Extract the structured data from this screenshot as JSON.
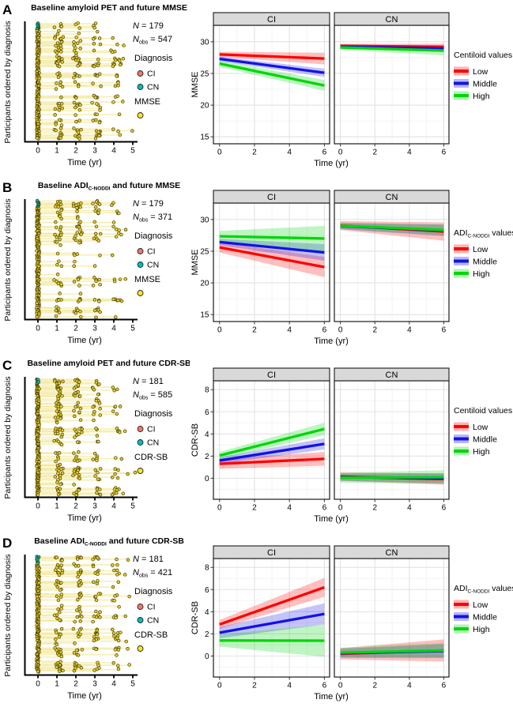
{
  "colors": {
    "low": "#FF0000",
    "middle": "#1212E8",
    "high": "#00D60A",
    "ci": "#F8766D",
    "cn": "#00BFC4",
    "outcome": "#FCE51E",
    "sp_line": "#EFE07A",
    "sp_dot": "#E6CF26",
    "sp_stroke": "#473C06",
    "strip_fill": "#D9D9D9",
    "panel_border": "#1A1A1A",
    "grid_major": "#E2E2E2",
    "grid_minor": "#F0F0F0",
    "tick_text": "#262626"
  },
  "chart_data": {
    "panels": [
      {
        "letter": "A",
        "title": [
          {
            "t": "Baseline amyloid PET and future MMSE"
          }
        ],
        "left": {
          "type": "spaghetti",
          "ylabel": "Participants ordered by diagnosis",
          "xlabel": "Time (yr)",
          "xticks": [
            0,
            1,
            2,
            3,
            4,
            5
          ],
          "n": "179",
          "nobs": "547",
          "legend_diagnosis_title": "Diagnosis",
          "legend_diagnosis": [
            {
              "label": "CI",
              "color_key": "ci"
            },
            {
              "label": "CN",
              "color_key": "cn"
            }
          ],
          "legend_outcome_title": "MMSE",
          "sim": {
            "seed": 11,
            "rows": 92,
            "followup_prob": 0.78,
            "time_max": 5.2
          }
        },
        "right": {
          "type": "line",
          "facets": [
            "CI",
            "CN"
          ],
          "ylabel": "MMSE",
          "xlabel": "Time (yr)",
          "x": [
            0,
            6
          ],
          "xticks": [
            0,
            2,
            4,
            6
          ],
          "xminor": [
            1,
            3,
            5
          ],
          "xlim": [
            -0.35,
            6.3
          ],
          "yticks": [
            15,
            20,
            25,
            30
          ],
          "yminor": [
            17.5,
            22.5,
            27.5,
            32.5
          ],
          "ylim": [
            13.9,
            32.6
          ],
          "legend_title": [
            {
              "t": "Centiloid values"
            }
          ],
          "legend_items": [
            {
              "label": "Low",
              "color_key": "low"
            },
            {
              "label": "Middle",
              "color_key": "middle"
            },
            {
              "label": "High",
              "color_key": "high"
            }
          ],
          "series": [
            {
              "facet": "CI",
              "name": "Low",
              "color_key": "low",
              "y": [
                28.0,
                27.35
              ],
              "band": [
                0.42,
                0.92
              ]
            },
            {
              "facet": "CI",
              "name": "Middle",
              "color_key": "middle",
              "y": [
                27.3,
                25.1
              ],
              "band": [
                0.35,
                0.65
              ]
            },
            {
              "facet": "CI",
              "name": "High",
              "color_key": "high",
              "y": [
                26.55,
                23.1
              ],
              "band": [
                0.5,
                0.85
              ]
            },
            {
              "facet": "CN",
              "name": "Low",
              "color_key": "low",
              "y": [
                29.35,
                29.2
              ],
              "band": [
                0.32,
                0.5
              ]
            },
            {
              "facet": "CN",
              "name": "Middle",
              "color_key": "middle",
              "y": [
                29.2,
                28.95
              ],
              "band": [
                0.28,
                0.45
              ]
            },
            {
              "facet": "CN",
              "name": "High",
              "color_key": "high",
              "y": [
                29.1,
                28.6
              ],
              "band": [
                0.35,
                0.75
              ]
            }
          ]
        }
      },
      {
        "letter": "B",
        "title": [
          {
            "t": "Baseline ADI"
          },
          {
            "s": "C-NODDI"
          },
          {
            "t": " and future MMSE"
          }
        ],
        "left": {
          "type": "spaghetti",
          "ylabel": "Participants ordered by diagnosis",
          "xlabel": "Time (yr)",
          "xticks": [
            0,
            1,
            2,
            3,
            4,
            5
          ],
          "n": "179",
          "nobs": "371",
          "legend_diagnosis_title": "Diagnosis",
          "legend_diagnosis": [
            {
              "label": "CI",
              "color_key": "ci"
            },
            {
              "label": "CN",
              "color_key": "cn"
            }
          ],
          "legend_outcome_title": "MMSE",
          "sim": {
            "seed": 23,
            "rows": 92,
            "followup_prob": 0.62,
            "time_max": 4.6
          }
        },
        "right": {
          "type": "line",
          "facets": [
            "CI",
            "CN"
          ],
          "ylabel": "MMSE",
          "xlabel": "Time (yr)",
          "x": [
            0,
            6
          ],
          "xticks": [
            0,
            2,
            4,
            6
          ],
          "xminor": [
            1,
            3,
            5
          ],
          "xlim": [
            -0.35,
            6.3
          ],
          "yticks": [
            15,
            20,
            25,
            30
          ],
          "yminor": [
            17.5,
            22.5,
            27.5,
            32.5
          ],
          "ylim": [
            13.9,
            32.6
          ],
          "legend_title": [
            {
              "t": "ADI"
            },
            {
              "s": "C-NODDI"
            },
            {
              "t": " values"
            }
          ],
          "legend_items": [
            {
              "label": "Low",
              "color_key": "low"
            },
            {
              "label": "Middle",
              "color_key": "middle"
            },
            {
              "label": "High",
              "color_key": "high"
            }
          ],
          "series": [
            {
              "facet": "CI",
              "name": "Low",
              "color_key": "low",
              "y": [
                25.6,
                22.5
              ],
              "band": [
                0.8,
                1.6
              ]
            },
            {
              "facet": "CI",
              "name": "Middle",
              "color_key": "middle",
              "y": [
                26.45,
                24.8
              ],
              "band": [
                0.5,
                1.3
              ]
            },
            {
              "facet": "CI",
              "name": "High",
              "color_key": "high",
              "y": [
                27.35,
                27.0
              ],
              "band": [
                0.85,
                2.0
              ]
            },
            {
              "facet": "CN",
              "name": "Low",
              "color_key": "low",
              "y": [
                29.05,
                28.1
              ],
              "band": [
                0.7,
                1.45
              ]
            },
            {
              "facet": "CN",
              "name": "Middle",
              "color_key": "middle",
              "y": [
                28.95,
                28.3
              ],
              "band": [
                0.5,
                0.9
              ]
            },
            {
              "facet": "CN",
              "name": "High",
              "color_key": "high",
              "y": [
                29.0,
                28.35
              ],
              "band": [
                0.5,
                0.85
              ]
            }
          ]
        }
      },
      {
        "letter": "C",
        "title": [
          {
            "t": "Baseline amyloid PET and future CDR-SB"
          }
        ],
        "left": {
          "type": "spaghetti",
          "ylabel": "Participants ordered by diagnosis",
          "xlabel": "Time (yr)",
          "xticks": [
            0,
            1,
            2,
            3,
            4,
            5
          ],
          "n": "181",
          "nobs": "585",
          "legend_diagnosis_title": "Diagnosis",
          "legend_diagnosis": [
            {
              "label": "CI",
              "color_key": "ci"
            },
            {
              "label": "CN",
              "color_key": "cn"
            }
          ],
          "legend_outcome_title": "CDR-SB",
          "sim": {
            "seed": 5,
            "rows": 92,
            "followup_prob": 0.8,
            "time_max": 5.2
          }
        },
        "right": {
          "type": "line",
          "facets": [
            "CI",
            "CN"
          ],
          "ylabel": "CDR-SB",
          "xlabel": "Time (yr)",
          "x": [
            0,
            6
          ],
          "xticks": [
            0,
            2,
            4,
            6
          ],
          "xminor": [
            1,
            3,
            5
          ],
          "xlim": [
            -0.35,
            6.3
          ],
          "yticks": [
            0,
            2,
            4,
            6,
            8
          ],
          "yminor": [
            -1,
            1,
            3,
            5,
            7
          ],
          "ylim": [
            -1.9,
            8.8
          ],
          "legend_title": [
            {
              "t": "Centiloid values"
            }
          ],
          "legend_items": [
            {
              "label": "Low",
              "color_key": "low"
            },
            {
              "label": "Middle",
              "color_key": "middle"
            },
            {
              "label": "High",
              "color_key": "high"
            }
          ],
          "series": [
            {
              "facet": "CI",
              "name": "Low",
              "color_key": "low",
              "y": [
                1.3,
                1.75
              ],
              "band": [
                0.45,
                0.62
              ]
            },
            {
              "facet": "CI",
              "name": "Middle",
              "color_key": "middle",
              "y": [
                1.6,
                3.1
              ],
              "band": [
                0.3,
                0.5
              ]
            },
            {
              "facet": "CI",
              "name": "High",
              "color_key": "high",
              "y": [
                2.05,
                4.45
              ],
              "band": [
                0.33,
                0.55
              ]
            },
            {
              "facet": "CN",
              "name": "Low",
              "color_key": "low",
              "y": [
                0.15,
                -0.08
              ],
              "band": [
                0.38,
                0.5
              ]
            },
            {
              "facet": "CN",
              "name": "Middle",
              "color_key": "middle",
              "y": [
                0.1,
                0.0
              ],
              "band": [
                0.33,
                0.45
              ]
            },
            {
              "facet": "CN",
              "name": "High",
              "color_key": "high",
              "y": [
                0.05,
                0.1
              ],
              "band": [
                0.45,
                0.62
              ]
            }
          ]
        }
      },
      {
        "letter": "D",
        "title": [
          {
            "t": "Baseline ADI"
          },
          {
            "s": "C-NODDI"
          },
          {
            "t": " and future CDR-SB"
          }
        ],
        "left": {
          "type": "spaghetti",
          "ylabel": "Participants ordered by diagnosis",
          "xlabel": "Time (yr)",
          "xticks": [
            0,
            1,
            2,
            3,
            4,
            5
          ],
          "n": "181",
          "nobs": "421",
          "legend_diagnosis_title": "Diagnosis",
          "legend_diagnosis": [
            {
              "label": "CI",
              "color_key": "ci"
            },
            {
              "label": "CN",
              "color_key": "cn"
            }
          ],
          "legend_outcome_title": "CDR-SB",
          "sim": {
            "seed": 17,
            "rows": 92,
            "followup_prob": 0.68,
            "time_max": 4.8
          }
        },
        "right": {
          "type": "line",
          "facets": [
            "CI",
            "CN"
          ],
          "ylabel": "CDR-SB",
          "xlabel": "Time (yr)",
          "x": [
            0,
            6
          ],
          "xticks": [
            0,
            2,
            4,
            6
          ],
          "xminor": [
            1,
            3,
            5
          ],
          "xlim": [
            -0.35,
            6.3
          ],
          "yticks": [
            0,
            2,
            4,
            6,
            8
          ],
          "yminor": [
            -1,
            1,
            3,
            5,
            7
          ],
          "ylim": [
            -1.9,
            8.8
          ],
          "legend_title": [
            {
              "t": "ADI"
            },
            {
              "s": "C-NODDI"
            },
            {
              "t": " values"
            }
          ],
          "legend_items": [
            {
              "label": "Low",
              "color_key": "low"
            },
            {
              "label": "Middle",
              "color_key": "middle"
            },
            {
              "label": "High",
              "color_key": "high"
            }
          ],
          "series": [
            {
              "facet": "CI",
              "name": "Low",
              "color_key": "low",
              "y": [
                2.85,
                6.2
              ],
              "band": [
                0.4,
                0.85
              ]
            },
            {
              "facet": "CI",
              "name": "Middle",
              "color_key": "middle",
              "y": [
                2.1,
                3.8
              ],
              "band": [
                0.5,
                0.95
              ]
            },
            {
              "facet": "CI",
              "name": "High",
              "color_key": "high",
              "y": [
                1.4,
                1.38
              ],
              "band": [
                0.55,
                1.45
              ]
            },
            {
              "facet": "CN",
              "name": "Low",
              "color_key": "low",
              "y": [
                0.2,
                0.5
              ],
              "band": [
                0.5,
                1.0
              ]
            },
            {
              "facet": "CN",
              "name": "Middle",
              "color_key": "middle",
              "y": [
                0.25,
                0.45
              ],
              "band": [
                0.4,
                0.62
              ]
            },
            {
              "facet": "CN",
              "name": "High",
              "color_key": "high",
              "y": [
                0.3,
                0.5
              ],
              "band": [
                0.45,
                0.68
              ]
            }
          ]
        }
      }
    ]
  }
}
